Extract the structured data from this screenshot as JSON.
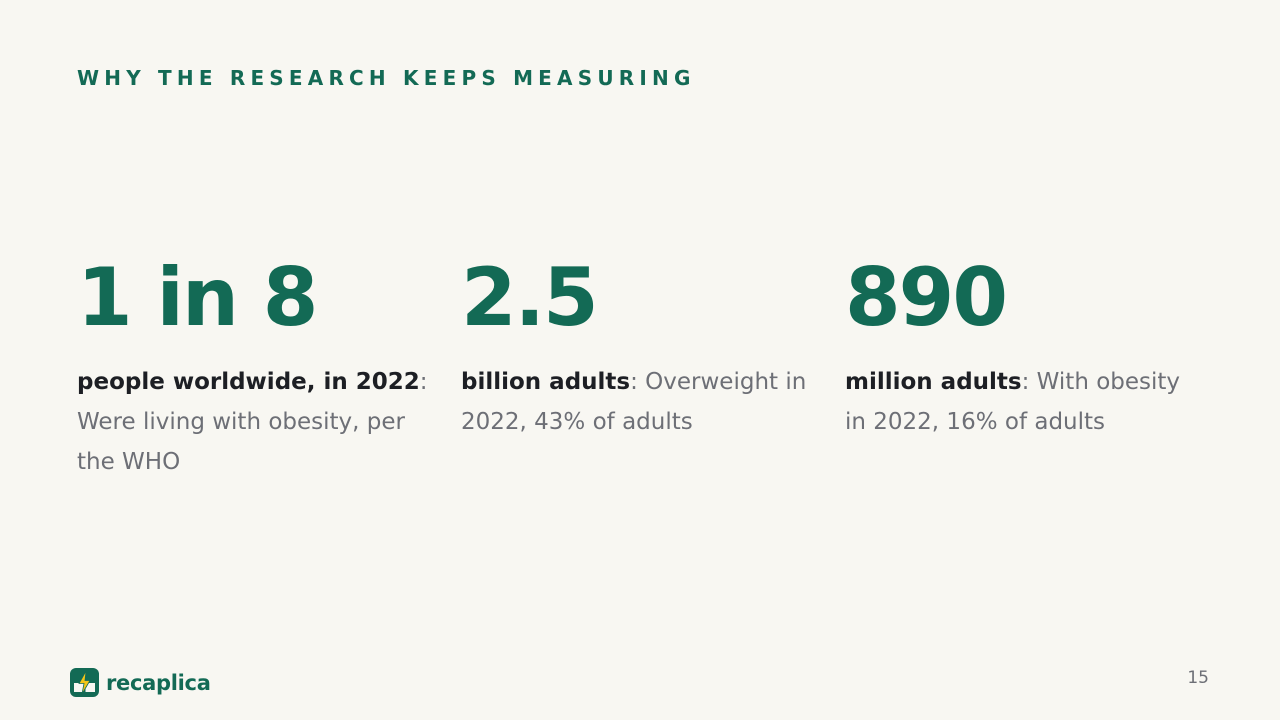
{
  "slide": {
    "eyebrow": "WHY THE RESEARCH KEEPS MEASURING",
    "stats": [
      {
        "value": "1 in 8",
        "lead": "people worldwide, in 2022",
        "rest": ": Were living with obesity, per the WHO"
      },
      {
        "value": "2.5",
        "lead": "billion adults",
        "rest": ": Overweight in 2022, 43% of adults"
      },
      {
        "value": "890",
        "lead": "million adults",
        "rest": ": With obesity in 2022, 16% of adults"
      }
    ]
  },
  "footer": {
    "logo_icon": "lightning-book-icon",
    "brand": "recaplica",
    "page_number": "15"
  },
  "colors": {
    "background": "#f8f7f2",
    "accent": "#136a55",
    "lead_text": "#1d1f24",
    "body_text": "#6d6f76",
    "logo_bolt": "#f5c518"
  }
}
